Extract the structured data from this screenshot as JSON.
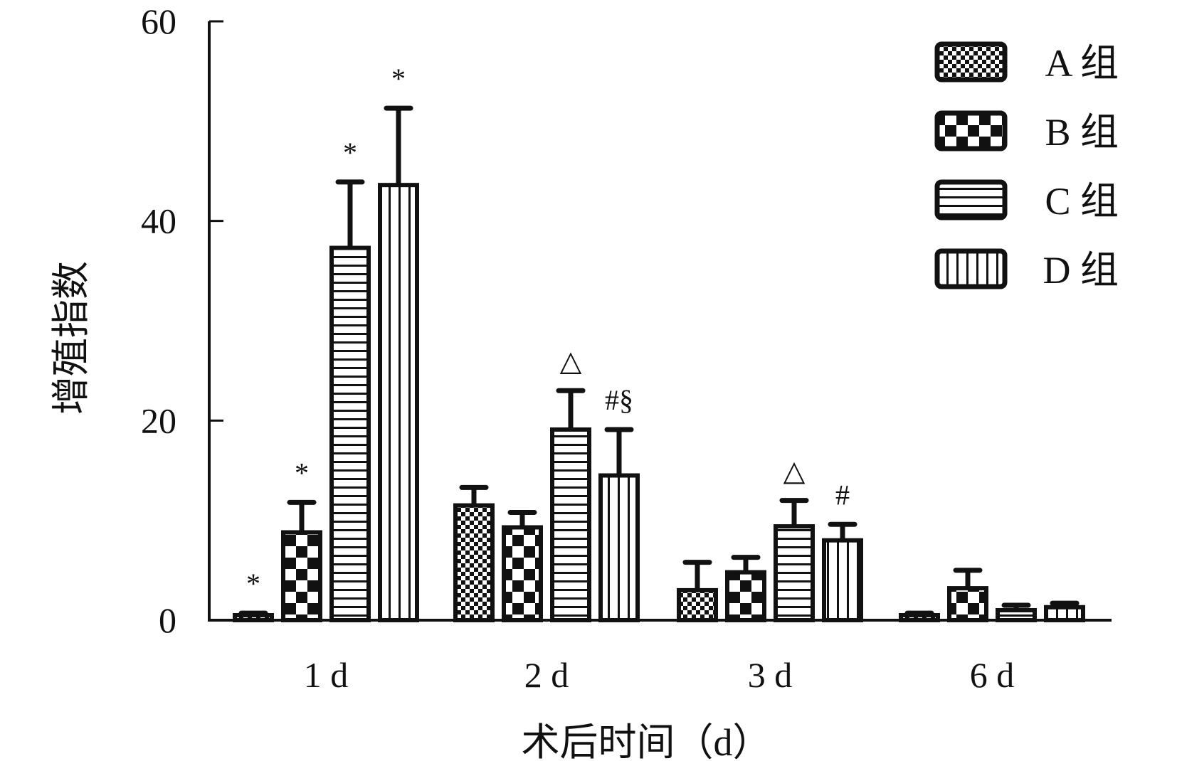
{
  "chart_data": {
    "type": "bar",
    "xlabel": "术后时间（d）",
    "ylabel": "增殖指数",
    "ylim": [
      0,
      60
    ],
    "yticks": [
      0,
      20,
      40,
      60
    ],
    "categories": [
      "1 d",
      "2 d",
      "3 d",
      "6 d"
    ],
    "series": [
      {
        "name": "A 组",
        "values": [
          0.5,
          11.5,
          3,
          0.5
        ],
        "errors": [
          0.2,
          1.8,
          2.8,
          0.2
        ],
        "pattern": "fine-checker"
      },
      {
        "name": "B 组",
        "values": [
          8.8,
          9.3,
          4.8,
          3.2
        ],
        "errors": [
          3,
          1.5,
          1.5,
          1.8
        ],
        "pattern": "coarse-checker"
      },
      {
        "name": "C 组",
        "values": [
          37.3,
          19.1,
          9.4,
          1
        ],
        "errors": [
          6.6,
          3.9,
          2.6,
          0.5
        ],
        "pattern": "horizontal-lines"
      },
      {
        "name": "D 组",
        "values": [
          43.6,
          14.5,
          8,
          1.3
        ],
        "errors": [
          7.7,
          4.6,
          1.6,
          0.4
        ],
        "pattern": "vertical-lines"
      }
    ],
    "annotations": [
      [
        "*",
        "*",
        "*",
        "*"
      ],
      [
        "",
        "",
        "△",
        "#§"
      ],
      [
        "",
        "",
        "△",
        "#"
      ],
      [
        "",
        "",
        "",
        ""
      ]
    ],
    "grid": false,
    "legend_position": "top-right"
  }
}
